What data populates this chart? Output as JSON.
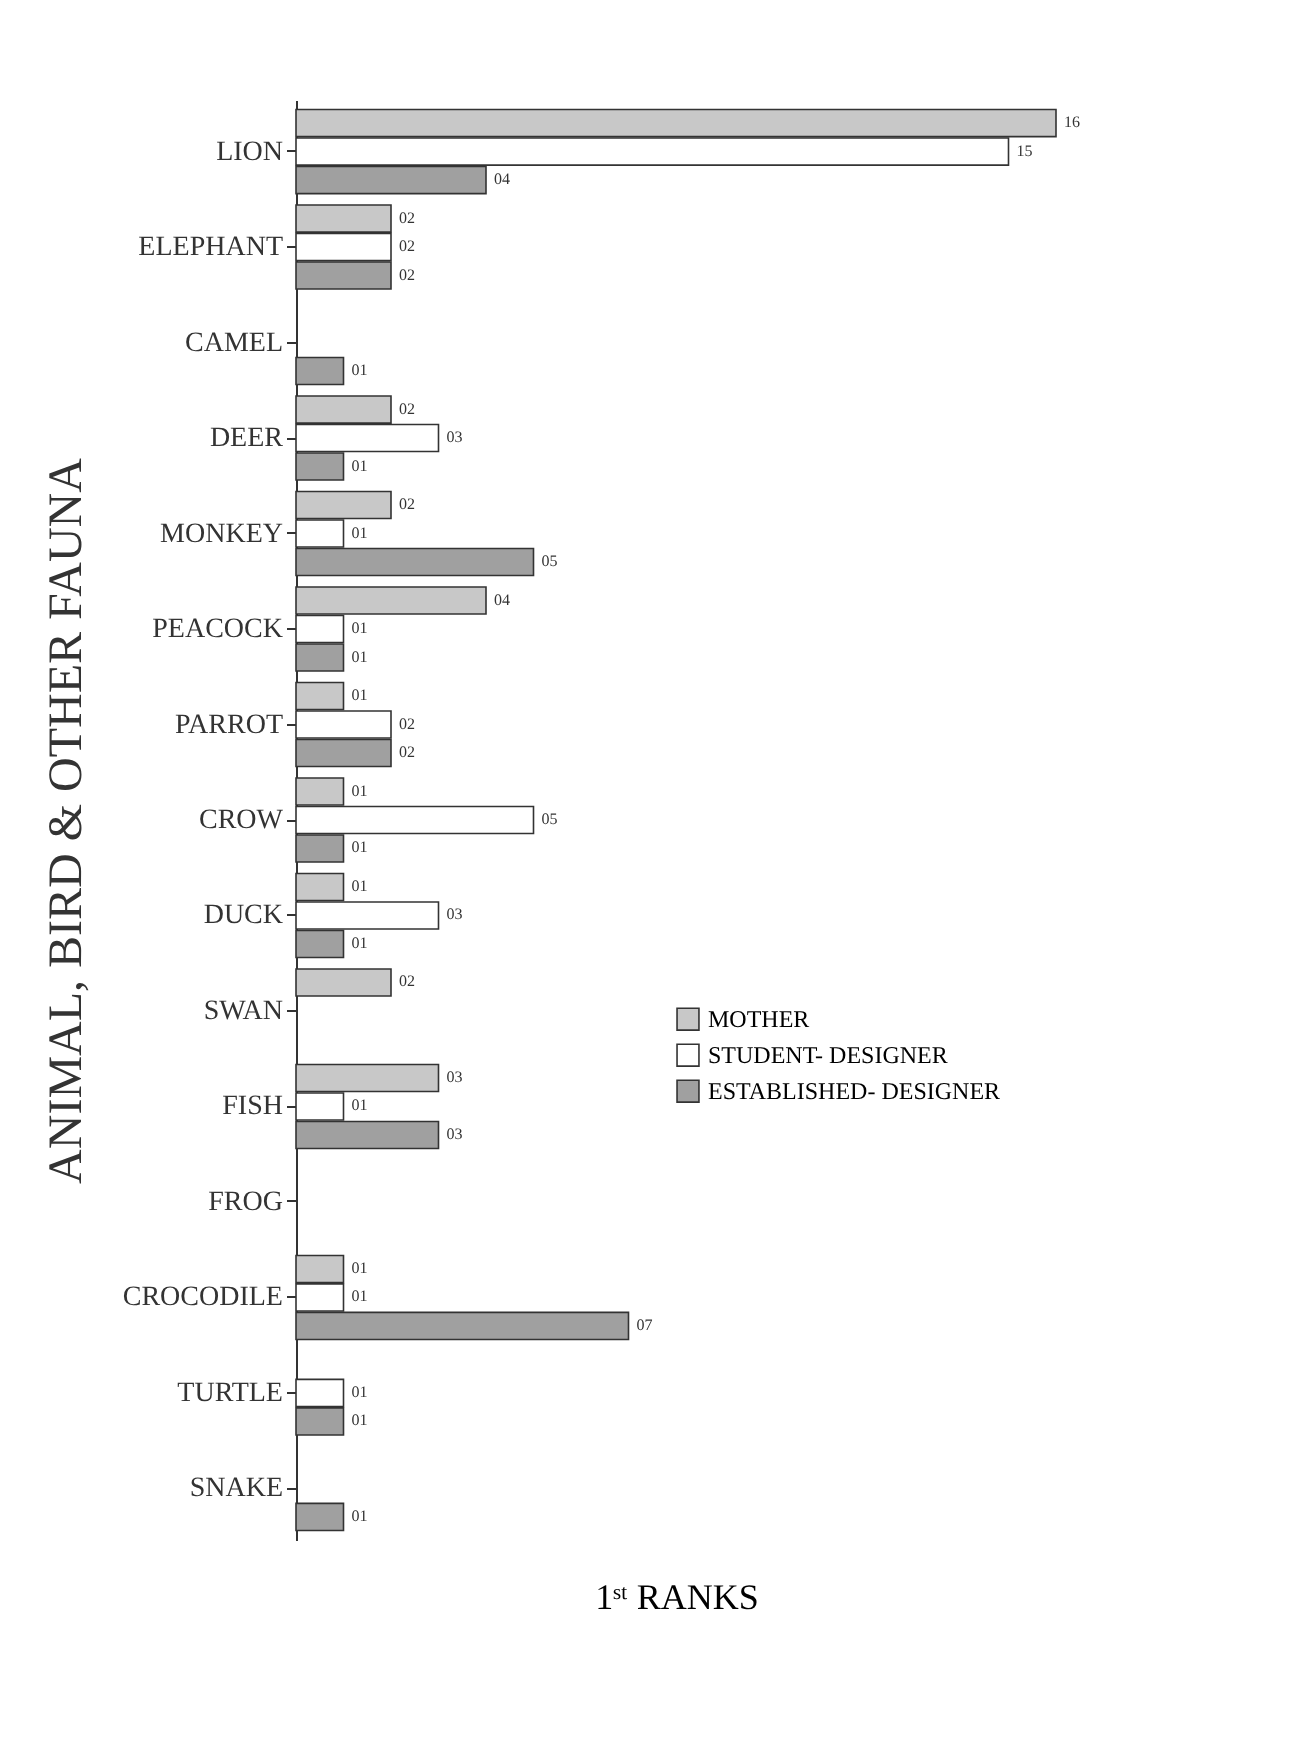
{
  "chart_data": {
    "type": "bar",
    "orientation": "horizontal",
    "xlabel": "1ˢᵗ RANKS",
    "ylabel": "ANIMAL, BIRD & OTHER FAUNA",
    "categories": [
      "LION",
      "ELEPHANT",
      "CAMEL",
      "DEER",
      "MONKEY",
      "PEACOCK",
      "PARROT",
      "CROW",
      "DUCK",
      "SWAN",
      "FISH",
      "FROG",
      "CROCODILE",
      "TURTLE",
      "SNAKE"
    ],
    "series": [
      {
        "name": "MOTHER",
        "color": "#c8c8c8",
        "values": [
          16,
          2,
          null,
          2,
          2,
          4,
          1,
          1,
          1,
          2,
          3,
          null,
          1,
          null,
          null
        ],
        "value_labels": [
          "16",
          "02",
          null,
          "02",
          "02",
          "04",
          "01",
          "01",
          "01",
          "02",
          "03",
          null,
          "01",
          null,
          null
        ]
      },
      {
        "name": "STUDENT- DESIGNER",
        "color": "#ffffff",
        "values": [
          15,
          2,
          null,
          3,
          1,
          1,
          2,
          5,
          3,
          null,
          1,
          null,
          1,
          1,
          null
        ],
        "value_labels": [
          "15",
          "02",
          null,
          "03",
          "01",
          "01",
          "02",
          "05",
          "03",
          null,
          "01",
          null,
          "01",
          "01",
          null
        ]
      },
      {
        "name": "ESTABLISHED- DESIGNER",
        "color": "#a0a0a0",
        "values": [
          4,
          2,
          1,
          1,
          5,
          1,
          2,
          1,
          1,
          null,
          3,
          null,
          7,
          1,
          1
        ],
        "value_labels": [
          "04",
          "02",
          "01",
          "01",
          "05",
          "01",
          "02",
          "01",
          "01",
          null,
          "03",
          null,
          "07",
          "01",
          "01"
        ]
      }
    ],
    "legend": "right",
    "grid": false,
    "tick_labels": "y"
  }
}
